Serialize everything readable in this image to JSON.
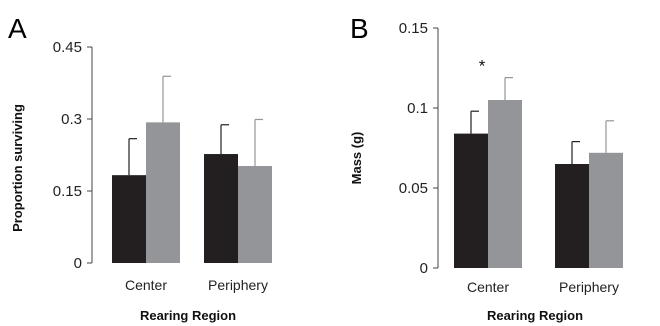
{
  "chart_data": [
    {
      "type": "bar",
      "panel": "A",
      "ylabel": "Proportion surviving",
      "xlabel": "Rearing Region",
      "ylim": [
        0,
        0.45
      ],
      "yticks": [
        "0",
        "0.15",
        "0.3",
        "0.45"
      ],
      "ytick_values": [
        0,
        0.15,
        0.3,
        0.45
      ],
      "categories": [
        "Center",
        "Periphery"
      ],
      "series": [
        {
          "values": [
            0.183,
            0.227
          ],
          "errors": [
            0.076,
            0.061
          ],
          "color": "#231f20"
        },
        {
          "values": [
            0.293,
            0.202
          ],
          "errors": [
            0.096,
            0.097
          ],
          "color": "#939598"
        }
      ],
      "annotations": [],
      "grid": false
    },
    {
      "type": "bar",
      "panel": "B",
      "ylabel": "Mass (g)",
      "xlabel": "Rearing Region",
      "ylim": [
        0,
        0.15
      ],
      "yticks": [
        "0",
        "0.05",
        "0.1",
        "0.15"
      ],
      "ytick_values": [
        0,
        0.05,
        0.1,
        0.15
      ],
      "categories": [
        "Center",
        "Periphery"
      ],
      "series": [
        {
          "values": [
            0.084,
            0.065
          ],
          "errors": [
            0.014,
            0.014
          ],
          "color": "#231f20"
        },
        {
          "values": [
            0.105,
            0.072
          ],
          "errors": [
            0.014,
            0.02
          ],
          "color": "#939598"
        }
      ],
      "annotations": [
        {
          "text": "*",
          "category": 0
        }
      ],
      "grid": false
    }
  ]
}
